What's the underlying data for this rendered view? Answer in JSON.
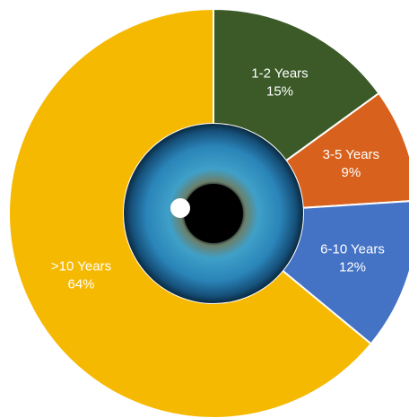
{
  "chart_data": {
    "type": "donut",
    "categories": [
      "1-2 Years",
      "3-5 Years",
      "6-10 Years",
      ">10 Years"
    ],
    "values": [
      15,
      9,
      12,
      64
    ],
    "value_labels": [
      "15%",
      "9%",
      "12%",
      "64%"
    ],
    "colors": [
      "#3b5a27",
      "#d8621d",
      "#4472c4",
      "#f6b902"
    ]
  }
}
